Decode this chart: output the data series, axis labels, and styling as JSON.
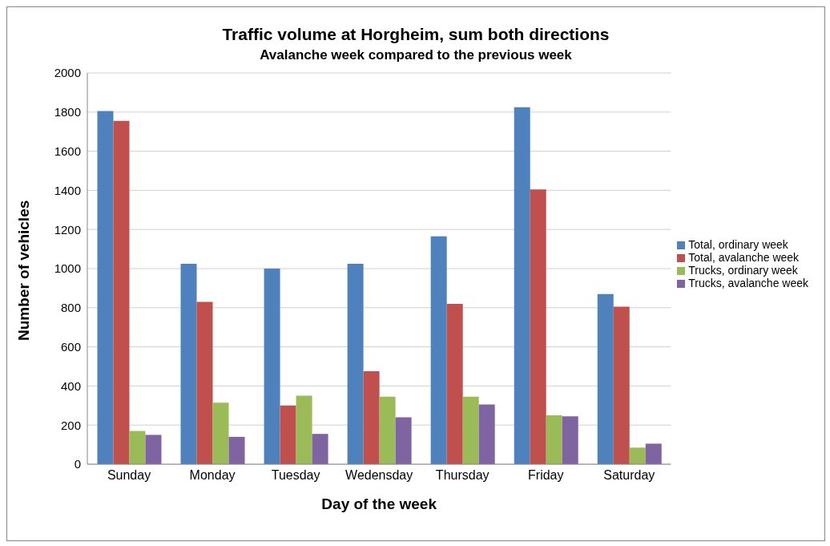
{
  "chart_data": {
    "type": "bar",
    "title": "Traffic volume at Horgheim, sum both directions",
    "subtitle": "Avalanche week compared to the previous week",
    "xlabel": "Day of the week",
    "ylabel": "Number of vehicles",
    "categories": [
      "Sunday",
      "Monday",
      "Tuesday",
      "Wedensday",
      "Thursday",
      "Friday",
      "Saturday"
    ],
    "series": [
      {
        "name": "Total, ordinary week",
        "color": "#4f81bd",
        "values": [
          1805,
          1025,
          1000,
          1025,
          1165,
          1825,
          870
        ]
      },
      {
        "name": "Total, avalanche week",
        "color": "#c0504d",
        "values": [
          1755,
          830,
          300,
          475,
          820,
          1405,
          805
        ]
      },
      {
        "name": "Trucks, ordinary week",
        "color": "#9bbb59",
        "values": [
          170,
          315,
          350,
          345,
          345,
          250,
          85
        ]
      },
      {
        "name": "Trucks, avalanche week",
        "color": "#8064a2",
        "values": [
          150,
          140,
          155,
          240,
          305,
          245,
          105
        ]
      }
    ],
    "ylim": [
      0,
      2000
    ],
    "yticks": [
      0,
      200,
      400,
      600,
      800,
      1000,
      1200,
      1400,
      1600,
      1800,
      2000
    ],
    "grid": "y",
    "legend": "right"
  }
}
